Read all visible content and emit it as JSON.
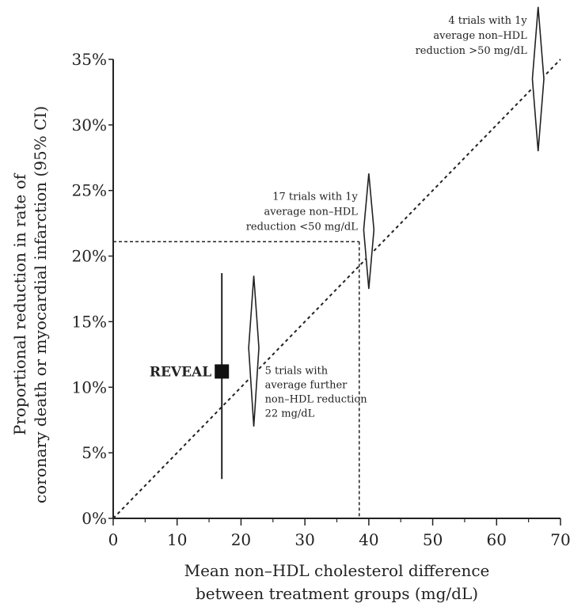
{
  "chart_data": {
    "type": "scatter",
    "xlabel": [
      "Mean non–HDL cholesterol difference",
      "between treatment groups (mg/dL)"
    ],
    "ylabel": [
      "Proportional reduction in rate of",
      "coronary death or myocardial infarction (95% CI)"
    ],
    "xlim": [
      0,
      70
    ],
    "ylim": [
      0,
      35
    ],
    "x_ticks": [
      0,
      10,
      20,
      30,
      40,
      50,
      60,
      70
    ],
    "x_tick_labels": [
      "0",
      "10",
      "20",
      "30",
      "40",
      "50",
      "60",
      "70"
    ],
    "y_ticks": [
      0,
      5,
      10,
      15,
      20,
      25,
      30,
      35
    ],
    "y_tick_labels": [
      "0%",
      "5%",
      "10%",
      "15%",
      "20%",
      "25%",
      "30%",
      "35%"
    ],
    "regression_line": {
      "x": [
        0,
        70
      ],
      "y": [
        0,
        35
      ]
    },
    "reference_point": {
      "x": 38.5,
      "y": 21.1
    },
    "trial_groups": [
      {
        "x": 22,
        "estimate": 13.0,
        "ci_low": 7.0,
        "ci_high": 18.5,
        "width": 0.8,
        "annotation": [
          "5 trials with",
          "average further",
          "non–HDL reduction",
          "22 mg/dL"
        ]
      },
      {
        "x": 40,
        "estimate": 22.0,
        "ci_low": 17.5,
        "ci_high": 26.3,
        "width": 0.8,
        "annotation": [
          "17 trials with 1y",
          "average non–HDL",
          "reduction <50 mg/dL"
        ]
      },
      {
        "x": 66.5,
        "estimate": 33.5,
        "ci_low": 28.0,
        "ci_high": 39.0,
        "width": 0.9,
        "annotation": [
          "4 trials with 1y",
          "average non–HDL",
          "reduction >50 mg/dL"
        ]
      }
    ],
    "reveal": {
      "label": "REVEAL",
      "x": 17,
      "estimate": 11.2,
      "ci_low": 3.0,
      "ci_high": 18.7
    }
  }
}
